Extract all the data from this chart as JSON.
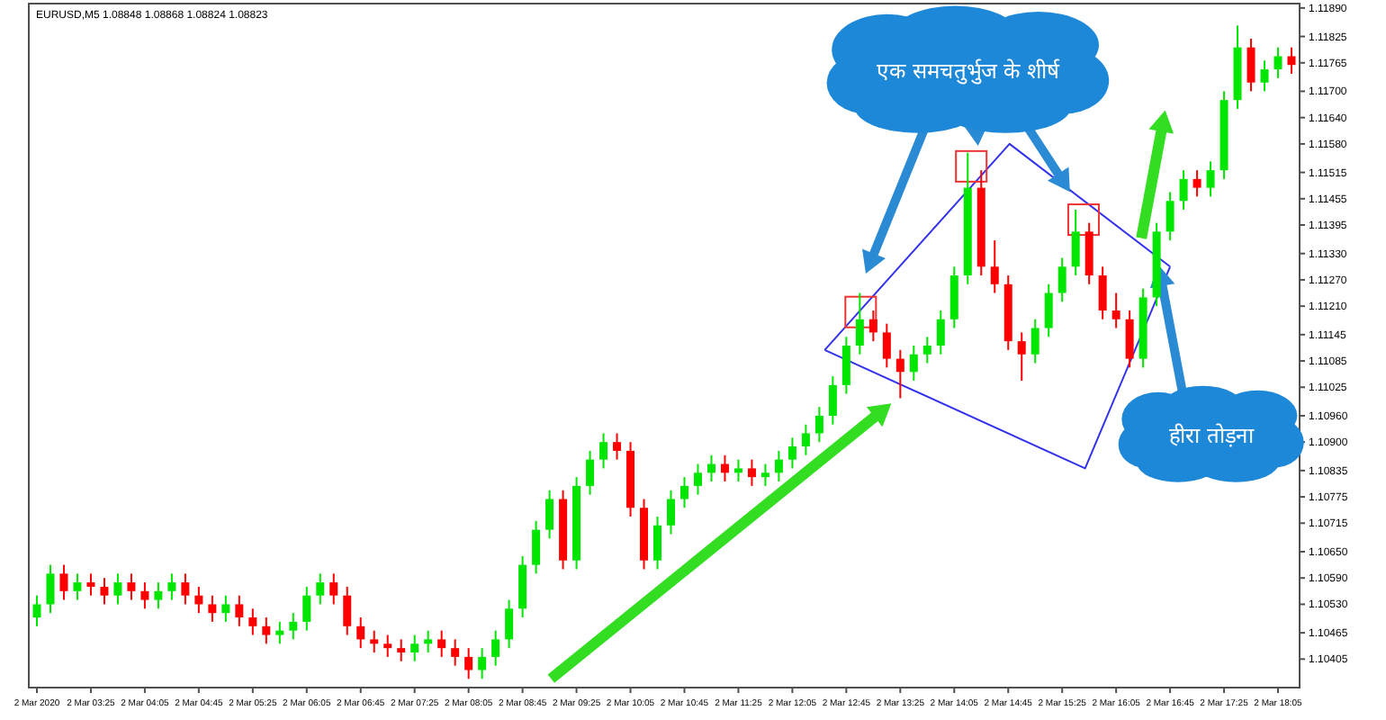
{
  "chart_data": {
    "type": "candlestick",
    "title": "EURUSD,M5 1.08848 1.08868 1.08824 1.08823",
    "annotations": [
      "एक समचतुर्भुज के शीर्ष",
      "हीरा तोड़ना"
    ],
    "series": [
      {
        "type": "line",
        "color": "#3333ee",
        "x": [
          "2020-03-02T12:29",
          "2020-03-02T14:46",
          "2020-03-02T16:45"
        ],
        "values": [
          1.1111,
          1.1158,
          1.113
        ]
      },
      {
        "type": "line",
        "color": "#3333ee",
        "x": [
          "2020-03-02T12:29",
          "2020-03-02T15:42",
          "2020-03-02T16:45"
        ],
        "values": [
          1.1111,
          1.1084,
          1.113
        ]
      }
    ],
    "xlim": [
      "2020-03-02T02:39",
      "2020-03-02T18:21"
    ],
    "ylim": [
      1.1034,
      1.119
    ],
    "xticks": [
      {
        "value": "2020-03-02T02:45",
        "label": "2 Mar 2020"
      },
      {
        "value": "2020-03-02T03:25",
        "label": "2 Mar 03:25"
      },
      {
        "value": "2020-03-02T04:05",
        "label": "2 Mar 04:05"
      },
      {
        "value": "2020-03-02T04:45",
        "label": "2 Mar 04:45"
      },
      {
        "value": "2020-03-02T05:25",
        "label": "2 Mar 05:25"
      },
      {
        "value": "2020-03-02T06:05",
        "label": "2 Mar 06:05"
      },
      {
        "value": "2020-03-02T06:45",
        "label": "2 Mar 06:45"
      },
      {
        "value": "2020-03-02T07:25",
        "label": "2 Mar 07:25"
      },
      {
        "value": "2020-03-02T08:05",
        "label": "2 Mar 08:05"
      },
      {
        "value": "2020-03-02T08:45",
        "label": "2 Mar 08:45"
      },
      {
        "value": "2020-03-02T09:25",
        "label": "2 Mar 09:25"
      },
      {
        "value": "2020-03-02T10:05",
        "label": "2 Mar 10:05"
      },
      {
        "value": "2020-03-02T10:45",
        "label": "2 Mar 10:45"
      },
      {
        "value": "2020-03-02T11:25",
        "label": "2 Mar 11:25"
      },
      {
        "value": "2020-03-02T12:05",
        "label": "2 Mar 12:05"
      },
      {
        "value": "2020-03-02T12:45",
        "label": "2 Mar 12:45"
      },
      {
        "value": "2020-03-02T13:25",
        "label": "2 Mar 13:25"
      },
      {
        "value": "2020-03-02T14:05",
        "label": "2 Mar 14:05"
      },
      {
        "value": "2020-03-02T14:45",
        "label": "2 Mar 14:45"
      },
      {
        "value": "2020-03-02T15:25",
        "label": "2 Mar 15:25"
      },
      {
        "value": "2020-03-02T16:05",
        "label": "2 Mar 16:05"
      },
      {
        "value": "2020-03-02T16:45",
        "label": "2 Mar 16:45"
      },
      {
        "value": "2020-03-02T17:25",
        "label": "2 Mar 17:25"
      },
      {
        "value": "2020-03-02T18:05",
        "label": "2 Mar 18:05"
      }
    ],
    "yticks": [
      {
        "value": 1.1189,
        "label": "1.11890"
      },
      {
        "value": 1.11825,
        "label": "1.11825"
      },
      {
        "value": 1.11765,
        "label": "1.11765"
      },
      {
        "value": 1.117,
        "label": "1.11700"
      },
      {
        "value": 1.1164,
        "label": "1.11640"
      },
      {
        "value": 1.1158,
        "label": "1.11580"
      },
      {
        "value": 1.11515,
        "label": "1.11515"
      },
      {
        "value": 1.11455,
        "label": "1.11455"
      },
      {
        "value": 1.11395,
        "label": "1.11395"
      },
      {
        "value": 1.1133,
        "label": "1.11330"
      },
      {
        "value": 1.1127,
        "label": "1.11270"
      },
      {
        "value": 1.1121,
        "label": "1.11210"
      },
      {
        "value": 1.11145,
        "label": "1.11145"
      },
      {
        "value": 1.11085,
        "label": "1.11085"
      },
      {
        "value": 1.11025,
        "label": "1.11025"
      },
      {
        "value": 1.1096,
        "label": "1.10960"
      },
      {
        "value": 1.109,
        "label": "1.10900"
      },
      {
        "value": 1.10835,
        "label": "1.10835"
      },
      {
        "value": 1.10775,
        "label": "1.10775"
      },
      {
        "value": 1.10715,
        "label": "1.10715"
      },
      {
        "value": 1.1065,
        "label": "1.10650"
      },
      {
        "value": 1.1059,
        "label": "1.10590"
      },
      {
        "value": 1.1053,
        "label": "1.10530"
      },
      {
        "value": 1.10465,
        "label": "1.10465"
      },
      {
        "value": 1.10405,
        "label": "1.10405"
      }
    ],
    "x": [
      "2020-03-02T02:45",
      "2020-03-02T02:55",
      "2020-03-02T03:05",
      "2020-03-02T03:15",
      "2020-03-02T03:25",
      "2020-03-02T03:35",
      "2020-03-02T03:45",
      "2020-03-02T03:55",
      "2020-03-02T04:05",
      "2020-03-02T04:15",
      "2020-03-02T04:25",
      "2020-03-02T04:35",
      "2020-03-02T04:45",
      "2020-03-02T04:55",
      "2020-03-02T05:05",
      "2020-03-02T05:15",
      "2020-03-02T05:25",
      "2020-03-02T05:35",
      "2020-03-02T05:45",
      "2020-03-02T05:55",
      "2020-03-02T06:05",
      "2020-03-02T06:15",
      "2020-03-02T06:25",
      "2020-03-02T06:35",
      "2020-03-02T06:45",
      "2020-03-02T06:55",
      "2020-03-02T07:05",
      "2020-03-02T07:15",
      "2020-03-02T07:25",
      "2020-03-02T07:35",
      "2020-03-02T07:45",
      "2020-03-02T07:55",
      "2020-03-02T08:05",
      "2020-03-02T08:15",
      "2020-03-02T08:25",
      "2020-03-02T08:35",
      "2020-03-02T08:45",
      "2020-03-02T08:55",
      "2020-03-02T09:05",
      "2020-03-02T09:15",
      "2020-03-02T09:25",
      "2020-03-02T09:35",
      "2020-03-02T09:45",
      "2020-03-02T09:55",
      "2020-03-02T10:05",
      "2020-03-02T10:15",
      "2020-03-02T10:25",
      "2020-03-02T10:35",
      "2020-03-02T10:45",
      "2020-03-02T10:55",
      "2020-03-02T11:05",
      "2020-03-02T11:15",
      "2020-03-02T11:25",
      "2020-03-02T11:35",
      "2020-03-02T11:45",
      "2020-03-02T11:55",
      "2020-03-02T12:05",
      "2020-03-02T12:15",
      "2020-03-02T12:25",
      "2020-03-02T12:35",
      "2020-03-02T12:45",
      "2020-03-02T12:55",
      "2020-03-02T13:05",
      "2020-03-02T13:15",
      "2020-03-02T13:25",
      "2020-03-02T13:35",
      "2020-03-02T13:45",
      "2020-03-02T13:55",
      "2020-03-02T14:05",
      "2020-03-02T14:15",
      "2020-03-02T14:25",
      "2020-03-02T14:35",
      "2020-03-02T14:45",
      "2020-03-02T14:55",
      "2020-03-02T15:05",
      "2020-03-02T15:15",
      "2020-03-02T15:25",
      "2020-03-02T15:35",
      "2020-03-02T15:45",
      "2020-03-02T15:55",
      "2020-03-02T16:05",
      "2020-03-02T16:15",
      "2020-03-02T16:25",
      "2020-03-02T16:35",
      "2020-03-02T16:45",
      "2020-03-02T16:55",
      "2020-03-02T17:05",
      "2020-03-02T17:15",
      "2020-03-02T17:25",
      "2020-03-02T17:35",
      "2020-03-02T17:45",
      "2020-03-02T17:55",
      "2020-03-02T18:05",
      "2020-03-02T18:15"
    ],
    "colors": [
      "#00e600",
      "#00e600",
      "#ff0000",
      "#00e600",
      "#ff0000",
      "#ff0000",
      "#00e600",
      "#ff0000",
      "#ff0000",
      "#00e600",
      "#00e600",
      "#ff0000",
      "#ff0000",
      "#ff0000",
      "#00e600",
      "#ff0000",
      "#ff0000",
      "#ff0000",
      "#00e600",
      "#00e600",
      "#00e600",
      "#00e600",
      "#ff0000",
      "#ff0000",
      "#ff0000",
      "#ff0000",
      "#ff0000",
      "#ff0000",
      "#00e600",
      "#00e600",
      "#ff0000",
      "#ff0000",
      "#ff0000",
      "#00e600",
      "#00e600",
      "#00e600",
      "#00e600",
      "#00e600",
      "#00e600",
      "#ff0000",
      "#00e600",
      "#00e600",
      "#00e600",
      "#ff0000",
      "#ff0000",
      "#ff0000",
      "#00e600",
      "#00e600",
      "#00e600",
      "#00e600",
      "#00e600",
      "#ff0000",
      "#00e600",
      "#ff0000",
      "#00e600",
      "#00e600",
      "#00e600",
      "#00e600",
      "#00e600",
      "#00e600",
      "#00e600",
      "#00e600",
      "#ff0000",
      "#ff0000",
      "#ff0000",
      "#00e600",
      "#00e600",
      "#00e600",
      "#00e600",
      "#00e600",
      "#ff0000",
      "#ff0000",
      "#ff0000",
      "#ff0000",
      "#00e600",
      "#00e600",
      "#00e600",
      "#00e600",
      "#ff0000",
      "#ff0000",
      "#ff0000",
      "#ff0000",
      "#00e600",
      "#00e600",
      "#00e600",
      "#00e600",
      "#ff0000",
      "#00e600",
      "#00e600",
      "#00e600",
      "#ff0000",
      "#00e600",
      "#00e600",
      "#ff0000"
    ],
    "ohlc": [
      [
        1.105,
        1.1055,
        1.1048,
        1.1053
      ],
      [
        1.1053,
        1.1062,
        1.1051,
        1.106
      ],
      [
        1.106,
        1.1062,
        1.1054,
        1.1056
      ],
      [
        1.1056,
        1.106,
        1.1054,
        1.1058
      ],
      [
        1.1058,
        1.106,
        1.1055,
        1.1057
      ],
      [
        1.1057,
        1.1059,
        1.1053,
        1.1055
      ],
      [
        1.1055,
        1.106,
        1.1053,
        1.1058
      ],
      [
        1.1058,
        1.106,
        1.1054,
        1.1056
      ],
      [
        1.1056,
        1.1058,
        1.1052,
        1.1054
      ],
      [
        1.1054,
        1.1058,
        1.1052,
        1.1056
      ],
      [
        1.1056,
        1.106,
        1.1054,
        1.1058
      ],
      [
        1.1058,
        1.106,
        1.1053,
        1.1055
      ],
      [
        1.1055,
        1.1057,
        1.1051,
        1.1053
      ],
      [
        1.1053,
        1.1055,
        1.1049,
        1.1051
      ],
      [
        1.1051,
        1.1055,
        1.1049,
        1.1053
      ],
      [
        1.1053,
        1.1055,
        1.1048,
        1.105
      ],
      [
        1.105,
        1.1052,
        1.1046,
        1.1048
      ],
      [
        1.1048,
        1.105,
        1.1044,
        1.1046
      ],
      [
        1.1046,
        1.1049,
        1.1044,
        1.1047
      ],
      [
        1.1047,
        1.1051,
        1.1045,
        1.1049
      ],
      [
        1.1049,
        1.1057,
        1.1047,
        1.1055
      ],
      [
        1.1055,
        1.106,
        1.1053,
        1.1058
      ],
      [
        1.1058,
        1.106,
        1.1053,
        1.1055
      ],
      [
        1.1055,
        1.1057,
        1.1046,
        1.1048
      ],
      [
        1.1048,
        1.105,
        1.1043,
        1.1045
      ],
      [
        1.1045,
        1.1047,
        1.1042,
        1.1044
      ],
      [
        1.1044,
        1.1046,
        1.1041,
        1.1043
      ],
      [
        1.1043,
        1.1045,
        1.104,
        1.1042
      ],
      [
        1.1042,
        1.1046,
        1.104,
        1.1044
      ],
      [
        1.1044,
        1.1047,
        1.1042,
        1.1045
      ],
      [
        1.1045,
        1.1047,
        1.1041,
        1.1043
      ],
      [
        1.1043,
        1.1045,
        1.1039,
        1.1041
      ],
      [
        1.1041,
        1.1043,
        1.1036,
        1.1038
      ],
      [
        1.1038,
        1.1043,
        1.1036,
        1.1041
      ],
      [
        1.1041,
        1.1047,
        1.1039,
        1.1045
      ],
      [
        1.1045,
        1.1054,
        1.1043,
        1.1052
      ],
      [
        1.1052,
        1.1064,
        1.105,
        1.1062
      ],
      [
        1.1062,
        1.1072,
        1.106,
        1.107
      ],
      [
        1.107,
        1.1079,
        1.1068,
        1.1077
      ],
      [
        1.1077,
        1.1079,
        1.1061,
        1.1063
      ],
      [
        1.1063,
        1.1082,
        1.1061,
        1.108
      ],
      [
        1.108,
        1.1088,
        1.1078,
        1.1086
      ],
      [
        1.1086,
        1.1092,
        1.1084,
        1.109
      ],
      [
        1.109,
        1.1092,
        1.1086,
        1.1088
      ],
      [
        1.1088,
        1.109,
        1.1073,
        1.1075
      ],
      [
        1.1075,
        1.1077,
        1.1061,
        1.1063
      ],
      [
        1.1063,
        1.1073,
        1.1061,
        1.1071
      ],
      [
        1.1071,
        1.1079,
        1.1069,
        1.1077
      ],
      [
        1.1077,
        1.1082,
        1.1075,
        1.108
      ],
      [
        1.108,
        1.1085,
        1.1078,
        1.1083
      ],
      [
        1.1083,
        1.1087,
        1.1081,
        1.1085
      ],
      [
        1.1085,
        1.1087,
        1.1081,
        1.1083
      ],
      [
        1.1083,
        1.1086,
        1.1081,
        1.1084
      ],
      [
        1.1084,
        1.1086,
        1.108,
        1.1082
      ],
      [
        1.1082,
        1.1085,
        1.108,
        1.1083
      ],
      [
        1.1083,
        1.1088,
        1.1081,
        1.1086
      ],
      [
        1.1086,
        1.1091,
        1.1084,
        1.1089
      ],
      [
        1.1089,
        1.1094,
        1.1087,
        1.1092
      ],
      [
        1.1092,
        1.1098,
        1.109,
        1.1096
      ],
      [
        1.1096,
        1.1105,
        1.1094,
        1.1103
      ],
      [
        1.1103,
        1.1114,
        1.1101,
        1.1112
      ],
      [
        1.1112,
        1.1124,
        1.111,
        1.1118
      ],
      [
        1.1118,
        1.112,
        1.1113,
        1.1115
      ],
      [
        1.1115,
        1.1117,
        1.1107,
        1.1109
      ],
      [
        1.1109,
        1.1111,
        1.11,
        1.1106
      ],
      [
        1.1106,
        1.1112,
        1.1104,
        1.111
      ],
      [
        1.111,
        1.1114,
        1.1108,
        1.1112
      ],
      [
        1.1112,
        1.112,
        1.111,
        1.1118
      ],
      [
        1.1118,
        1.113,
        1.1116,
        1.1128
      ],
      [
        1.1128,
        1.1156,
        1.1126,
        1.1148
      ],
      [
        1.1148,
        1.1152,
        1.1128,
        1.113
      ],
      [
        1.113,
        1.1136,
        1.1124,
        1.1126
      ],
      [
        1.1126,
        1.1128,
        1.1111,
        1.1113
      ],
      [
        1.1113,
        1.1115,
        1.1104,
        1.111
      ],
      [
        1.111,
        1.1118,
        1.1108,
        1.1116
      ],
      [
        1.1116,
        1.1126,
        1.1114,
        1.1124
      ],
      [
        1.1124,
        1.1132,
        1.1122,
        1.113
      ],
      [
        1.113,
        1.1143,
        1.1128,
        1.1138
      ],
      [
        1.1138,
        1.114,
        1.1126,
        1.1128
      ],
      [
        1.1128,
        1.113,
        1.1118,
        1.112
      ],
      [
        1.112,
        1.1124,
        1.1116,
        1.1118
      ],
      [
        1.1118,
        1.112,
        1.1107,
        1.1109
      ],
      [
        1.1109,
        1.1125,
        1.1107,
        1.1123
      ],
      [
        1.1123,
        1.114,
        1.1121,
        1.1138
      ],
      [
        1.1138,
        1.1147,
        1.1136,
        1.1145
      ],
      [
        1.1145,
        1.1152,
        1.1143,
        1.115
      ],
      [
        1.115,
        1.1152,
        1.1146,
        1.1148
      ],
      [
        1.1148,
        1.1154,
        1.1146,
        1.1152
      ],
      [
        1.1152,
        1.117,
        1.115,
        1.1168
      ],
      [
        1.1168,
        1.1185,
        1.1166,
        1.118
      ],
      [
        1.118,
        1.1182,
        1.117,
        1.1172
      ],
      [
        1.1172,
        1.1177,
        1.117,
        1.1175
      ],
      [
        1.1175,
        1.118,
        1.1173,
        1.1178
      ],
      [
        1.1178,
        1.118,
        1.1174,
        1.1176
      ]
    ]
  }
}
